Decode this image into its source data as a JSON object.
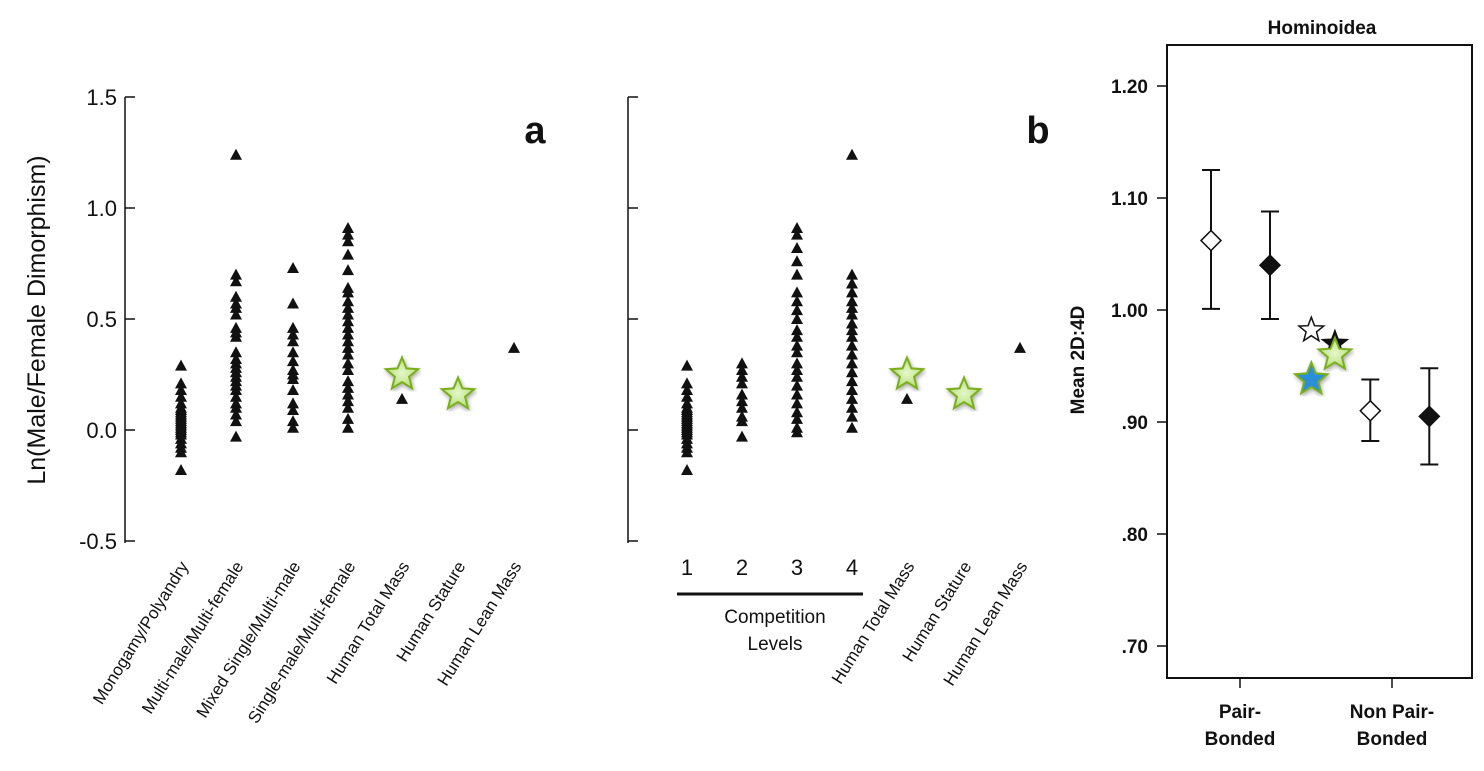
{
  "chart_data": [
    {
      "panel_label": "a",
      "type": "scatter",
      "ylabel": "Ln(Male/Female Dimorphism)",
      "ylim": [
        -0.5,
        1.5
      ],
      "yticks": [
        "1.5",
        "1.0",
        "0.5",
        "0.0",
        "-0.5"
      ],
      "categories": [
        "Monogamy/Polyandry",
        "Multi-male/Multi-female",
        "Mixed Single/Multi-male",
        "Single-male/Multi-female",
        "Human Total Mass",
        "Human Stature",
        "Human Lean Mass"
      ],
      "triangles": [
        [
          0.29,
          0.21,
          0.18,
          0.15,
          0.12,
          0.1,
          0.09,
          0.08,
          0.07,
          0.06,
          0.05,
          0.04,
          0.03,
          0.02,
          0.01,
          0,
          -0.01,
          -0.02,
          -0.04,
          -0.06,
          -0.08,
          -0.1,
          -0.18
        ],
        [
          1.24,
          0.7,
          0.67,
          0.6,
          0.57,
          0.55,
          0.52,
          0.46,
          0.44,
          0.42,
          0.35,
          0.32,
          0.3,
          0.28,
          0.26,
          0.24,
          0.22,
          0.2,
          0.18,
          0.15,
          0.12,
          0.1,
          0.07,
          0.04,
          -0.03
        ],
        [
          0.73,
          0.57,
          0.46,
          0.43,
          0.4,
          0.35,
          0.31,
          0.27,
          0.25,
          0.23,
          0.18,
          0.12,
          0.09,
          0.04,
          0.01
        ],
        [
          0.91,
          0.88,
          0.85,
          0.79,
          0.72,
          0.64,
          0.62,
          0.58,
          0.55,
          0.52,
          0.49,
          0.46,
          0.43,
          0.4,
          0.37,
          0.34,
          0.3,
          0.27,
          0.22,
          0.19,
          0.16,
          0.13,
          0.1,
          0.05,
          0.01
        ],
        [
          0.14
        ],
        [
          0.17
        ],
        [
          0.37
        ]
      ],
      "stars": [
        null,
        null,
        null,
        null,
        0.25,
        0.16,
        null
      ]
    },
    {
      "panel_label": "b",
      "type": "scatter",
      "ylim": [
        -0.5,
        1.5
      ],
      "group_label": "Competition Levels",
      "categories": [
        "1",
        "2",
        "3",
        "4",
        "Human Total Mass",
        "Human Stature",
        "Human Lean Mass"
      ],
      "triangles": [
        [
          0.29,
          0.21,
          0.18,
          0.15,
          0.12,
          0.1,
          0.09,
          0.08,
          0.07,
          0.06,
          0.05,
          0.04,
          0.03,
          0.02,
          0.01,
          0,
          -0.01,
          -0.02,
          -0.04,
          -0.06,
          -0.08,
          -0.1,
          -0.18
        ],
        [
          0.3,
          0.27,
          0.24,
          0.21,
          0.16,
          0.13,
          0.1,
          0.06,
          0.04,
          -0.03
        ],
        [
          0.91,
          0.88,
          0.82,
          0.76,
          0.7,
          0.62,
          0.58,
          0.54,
          0.5,
          0.45,
          0.42,
          0.38,
          0.35,
          0.3,
          0.27,
          0.24,
          0.2,
          0.16,
          0.12,
          0.08,
          0.05,
          0.01,
          -0.01
        ],
        [
          1.24,
          0.7,
          0.66,
          0.62,
          0.58,
          0.55,
          0.52,
          0.48,
          0.45,
          0.42,
          0.38,
          0.34,
          0.3,
          0.26,
          0.22,
          0.18,
          0.14,
          0.1,
          0.06,
          0.01
        ],
        [
          0.14
        ],
        [
          0.17
        ],
        [
          0.37
        ]
      ],
      "stars": [
        null,
        null,
        null,
        null,
        0.25,
        0.16,
        null
      ]
    },
    {
      "title": "Hominoidea",
      "type": "errorbar",
      "ylabel": "Mean 2D:4D",
      "ylim": [
        0.65,
        1.24
      ],
      "yticks": [
        {
          "v": 1.2,
          "l": "1.20"
        },
        {
          "v": 1.1,
          "l": "1.10"
        },
        {
          "v": 1.0,
          "l": "1.00"
        },
        {
          "v": 0.9,
          "l": ".90"
        },
        {
          "v": 0.8,
          "l": ".80"
        },
        {
          "v": 0.7,
          "l": ".70"
        }
      ],
      "categories": [
        {
          "l1": "Pair-",
          "l2": "Bonded"
        },
        {
          "l1": "Non Pair-",
          "l2": "Bonded"
        }
      ],
      "points": [
        {
          "pos": 0,
          "marker": "diamond-open",
          "mean": 1.062,
          "low": 1.001,
          "high": 1.125
        },
        {
          "pos": 1,
          "marker": "diamond-filled",
          "mean": 1.04,
          "low": 0.992,
          "high": 1.088
        },
        {
          "pos": 1.7,
          "marker": "star-open",
          "mean": 0.982
        },
        {
          "pos": 2.1,
          "marker": "star-black",
          "mean": 0.97
        },
        {
          "pos": 2.1,
          "marker": "star-green",
          "mean": 0.96
        },
        {
          "pos": 1.7,
          "marker": "star-blue",
          "mean": 0.938
        },
        {
          "pos": 2.7,
          "marker": "diamond-open",
          "mean": 0.91,
          "low": 0.883,
          "high": 0.938
        },
        {
          "pos": 3.7,
          "marker": "diamond-filled",
          "mean": 0.905,
          "low": 0.862,
          "high": 0.948
        }
      ]
    }
  ],
  "colors": {
    "star_green": "#b5e07a",
    "star_stroke": "#7aae1a",
    "star_blue": "#2a8fd8"
  }
}
